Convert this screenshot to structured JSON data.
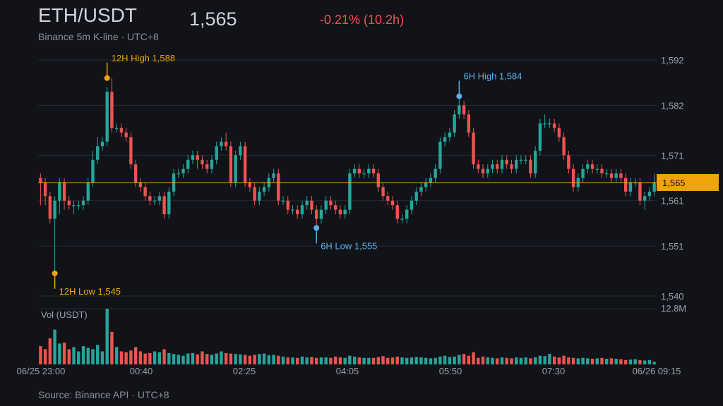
{
  "header": {
    "title": "ETH/USDT",
    "subtitle": "Binance 5m K-line · UTC+8",
    "price": "1,565",
    "change": "-0.21% (10.2h)"
  },
  "footer": {
    "source": "Source: Binance API · UTC+8"
  },
  "colors": {
    "up": "#26a69a",
    "down": "#ef5350",
    "price_line": "#f0a30a",
    "high_low_12h": "#f0a30a",
    "high_low_6h": "#5aaee8"
  },
  "chart_data": {
    "type": "candlestick",
    "ylim": [
      1540,
      1592
    ],
    "y_ticks": [
      1540,
      1551,
      1561,
      1571,
      1582,
      1592
    ],
    "y_tick_labels": [
      "1,540",
      "1,551",
      "1,561",
      "1,571",
      "1,582",
      "1,592"
    ],
    "x_tick_labels": [
      "06/25 23:00",
      "00:40",
      "02:25",
      "04:05",
      "05:50",
      "07:30",
      "06/26 09:15"
    ],
    "current_price": 1565,
    "current_price_label": "1,565",
    "volume_label": "Vol (USDT)",
    "volume_max_label": "12.8M",
    "annotations": [
      {
        "label": "12H High 1,588",
        "index": 14,
        "value": 1588,
        "kind": "high12"
      },
      {
        "label": "12H Low 1,545",
        "index": 3,
        "value": 1545,
        "kind": "low12"
      },
      {
        "label": "6H High 1,584",
        "index": 88,
        "value": 1584,
        "kind": "high6"
      },
      {
        "label": "6H Low 1,555",
        "index": 58,
        "value": 1555,
        "kind": "low6"
      }
    ],
    "candles": [
      [
        1566,
        1565,
        1567,
        1560
      ],
      [
        1565,
        1562,
        1566,
        1560
      ],
      [
        1562,
        1557,
        1563,
        1556
      ],
      [
        1557,
        1561,
        1562,
        1545
      ],
      [
        1561,
        1565,
        1566,
        1558
      ],
      [
        1565,
        1561,
        1566,
        1559
      ],
      [
        1561,
        1560,
        1562,
        1559
      ],
      [
        1560,
        1560,
        1561,
        1558
      ],
      [
        1560,
        1560,
        1561,
        1559
      ],
      [
        1560,
        1561,
        1562,
        1559
      ],
      [
        1561,
        1565,
        1566,
        1560
      ],
      [
        1565,
        1570,
        1572,
        1564
      ],
      [
        1570,
        1573,
        1575,
        1569
      ],
      [
        1573,
        1574,
        1575,
        1572
      ],
      [
        1574,
        1585,
        1586,
        1573
      ],
      [
        1585,
        1577,
        1588,
        1576
      ],
      [
        1577,
        1577,
        1578,
        1576
      ],
      [
        1577,
        1576,
        1578,
        1575
      ],
      [
        1576,
        1575,
        1577,
        1574
      ],
      [
        1575,
        1569,
        1576,
        1568
      ],
      [
        1569,
        1565,
        1570,
        1564
      ],
      [
        1565,
        1564,
        1566,
        1563
      ],
      [
        1564,
        1562,
        1565,
        1561
      ],
      [
        1562,
        1561,
        1563,
        1560
      ],
      [
        1561,
        1561,
        1562,
        1560
      ],
      [
        1561,
        1562,
        1563,
        1560
      ],
      [
        1562,
        1558,
        1563,
        1557
      ],
      [
        1558,
        1563,
        1564,
        1557
      ],
      [
        1563,
        1567,
        1568,
        1562
      ],
      [
        1567,
        1567,
        1568,
        1566
      ],
      [
        1567,
        1568,
        1569,
        1566
      ],
      [
        1568,
        1570,
        1571,
        1567
      ],
      [
        1570,
        1571,
        1572,
        1569
      ],
      [
        1571,
        1570,
        1572,
        1568
      ],
      [
        1570,
        1569,
        1571,
        1568
      ],
      [
        1569,
        1568,
        1570,
        1567
      ],
      [
        1568,
        1570,
        1571,
        1567
      ],
      [
        1570,
        1573,
        1574,
        1569
      ],
      [
        1573,
        1574,
        1575,
        1572
      ],
      [
        1574,
        1573,
        1576,
        1572
      ],
      [
        1573,
        1565,
        1574,
        1564
      ],
      [
        1565,
        1571,
        1572,
        1564
      ],
      [
        1571,
        1573,
        1574,
        1570
      ],
      [
        1573,
        1565,
        1574,
        1564
      ],
      [
        1565,
        1564,
        1566,
        1563
      ],
      [
        1564,
        1561,
        1565,
        1560
      ],
      [
        1561,
        1563,
        1564,
        1560
      ],
      [
        1563,
        1564,
        1565,
        1562
      ],
      [
        1564,
        1566,
        1567,
        1563
      ],
      [
        1566,
        1567,
        1568,
        1565
      ],
      [
        1567,
        1561,
        1568,
        1560
      ],
      [
        1561,
        1561,
        1562,
        1560
      ],
      [
        1561,
        1559,
        1562,
        1558
      ],
      [
        1559,
        1559,
        1560,
        1558
      ],
      [
        1559,
        1558,
        1560,
        1557
      ],
      [
        1558,
        1560,
        1561,
        1557
      ],
      [
        1560,
        1561,
        1562,
        1559
      ],
      [
        1561,
        1559,
        1562,
        1558
      ],
      [
        1559,
        1557,
        1560,
        1555
      ],
      [
        1557,
        1559,
        1560,
        1556
      ],
      [
        1559,
        1561,
        1562,
        1558
      ],
      [
        1561,
        1560,
        1562,
        1559
      ],
      [
        1560,
        1559,
        1561,
        1558
      ],
      [
        1559,
        1558,
        1560,
        1557
      ],
      [
        1558,
        1559,
        1560,
        1557
      ],
      [
        1559,
        1567,
        1568,
        1558
      ],
      [
        1567,
        1568,
        1569,
        1566
      ],
      [
        1568,
        1567,
        1569,
        1566
      ],
      [
        1567,
        1567,
        1568,
        1566
      ],
      [
        1567,
        1568,
        1569,
        1566
      ],
      [
        1568,
        1567,
        1569,
        1566
      ],
      [
        1567,
        1564,
        1568,
        1563
      ],
      [
        1564,
        1562,
        1565,
        1561
      ],
      [
        1562,
        1561,
        1563,
        1560
      ],
      [
        1561,
        1560,
        1562,
        1559
      ],
      [
        1560,
        1557,
        1561,
        1556
      ],
      [
        1557,
        1557,
        1558,
        1556
      ],
      [
        1557,
        1559,
        1560,
        1556
      ],
      [
        1559,
        1561,
        1562,
        1558
      ],
      [
        1561,
        1563,
        1564,
        1560
      ],
      [
        1563,
        1564,
        1565,
        1562
      ],
      [
        1564,
        1565,
        1566,
        1563
      ],
      [
        1565,
        1566,
        1567,
        1564
      ],
      [
        1566,
        1568,
        1569,
        1565
      ],
      [
        1568,
        1574,
        1575,
        1567
      ],
      [
        1574,
        1575,
        1576,
        1573
      ],
      [
        1575,
        1576,
        1577,
        1574
      ],
      [
        1576,
        1580,
        1581,
        1575
      ],
      [
        1580,
        1582,
        1584,
        1579
      ],
      [
        1582,
        1580,
        1583,
        1579
      ],
      [
        1580,
        1576,
        1581,
        1575
      ],
      [
        1576,
        1569,
        1577,
        1568
      ],
      [
        1569,
        1568,
        1570,
        1567
      ],
      [
        1568,
        1567,
        1569,
        1566
      ],
      [
        1567,
        1568,
        1569,
        1566
      ],
      [
        1568,
        1569,
        1570,
        1567
      ],
      [
        1569,
        1568,
        1570,
        1567
      ],
      [
        1568,
        1570,
        1571,
        1567
      ],
      [
        1570,
        1569,
        1571,
        1568
      ],
      [
        1569,
        1568,
        1570,
        1567
      ],
      [
        1568,
        1570,
        1571,
        1567
      ],
      [
        1570,
        1570,
        1571,
        1569
      ],
      [
        1570,
        1570,
        1571,
        1569
      ],
      [
        1570,
        1567,
        1571,
        1566
      ],
      [
        1567,
        1572,
        1573,
        1566
      ],
      [
        1572,
        1578,
        1579,
        1571
      ],
      [
        1578,
        1578,
        1580,
        1577
      ],
      [
        1578,
        1578,
        1579,
        1577
      ],
      [
        1578,
        1577,
        1579,
        1576
      ],
      [
        1577,
        1575,
        1578,
        1574
      ],
      [
        1575,
        1571,
        1576,
        1570
      ],
      [
        1571,
        1568,
        1572,
        1567
      ],
      [
        1568,
        1564,
        1569,
        1563
      ],
      [
        1564,
        1566,
        1567,
        1563
      ],
      [
        1566,
        1568,
        1569,
        1565
      ],
      [
        1568,
        1569,
        1570,
        1567
      ],
      [
        1569,
        1568,
        1570,
        1567
      ],
      [
        1568,
        1568,
        1569,
        1567
      ],
      [
        1568,
        1567,
        1569,
        1566
      ],
      [
        1567,
        1567,
        1568,
        1566
      ],
      [
        1567,
        1566,
        1568,
        1565
      ],
      [
        1566,
        1567,
        1568,
        1565
      ],
      [
        1567,
        1566,
        1568,
        1565
      ],
      [
        1566,
        1563,
        1567,
        1562
      ],
      [
        1563,
        1565,
        1566,
        1562
      ],
      [
        1565,
        1565,
        1566,
        1564
      ],
      [
        1565,
        1561,
        1566,
        1560
      ],
      [
        1561,
        1562,
        1563,
        1559
      ],
      [
        1562,
        1563,
        1564,
        1561
      ],
      [
        1563,
        1565,
        1567,
        1562
      ]
    ],
    "volume": [
      4.2,
      3.5,
      6.0,
      8.0,
      4.8,
      5.0,
      3.5,
      4.0,
      3.0,
      4.2,
      3.8,
      3.5,
      4.5,
      3.0,
      12.8,
      7.5,
      4.0,
      3.0,
      2.8,
      3.2,
      4.0,
      3.0,
      2.5,
      2.6,
      3.0,
      2.8,
      3.5,
      2.6,
      2.4,
      2.2,
      2.0,
      2.5,
      2.6,
      2.3,
      3.0,
      2.4,
      2.2,
      2.5,
      3.0,
      2.6,
      2.5,
      2.4,
      2.3,
      2.2,
      2.0,
      2.2,
      2.4,
      2.5,
      2.1,
      2.2,
      2.0,
      1.8,
      1.6,
      1.6,
      1.5,
      1.8,
      1.6,
      1.7,
      1.5,
      1.6,
      1.6,
      1.5,
      1.8,
      1.6,
      1.5,
      2.0,
      1.8,
      1.6,
      1.5,
      1.5,
      1.5,
      1.7,
      1.9,
      1.5,
      1.6,
      1.8,
      1.6,
      1.5,
      1.6,
      1.7,
      1.6,
      1.5,
      1.4,
      1.5,
      1.8,
      2.0,
      1.7,
      1.8,
      2.2,
      2.4,
      2.0,
      2.8,
      1.5,
      1.8,
      1.6,
      1.5,
      1.4,
      1.6,
      1.5,
      1.4,
      1.6,
      1.5,
      1.6,
      1.4,
      1.6,
      2.0,
      1.9,
      2.4,
      1.8,
      1.6,
      2.0,
      1.6,
      1.5,
      1.4,
      1.5,
      1.4,
      1.3,
      1.4,
      1.5,
      1.3,
      1.4,
      1.3,
      1.2,
      1.0,
      1.1,
      1.2,
      1.0,
      0.9,
      1.0,
      0.6
    ]
  }
}
